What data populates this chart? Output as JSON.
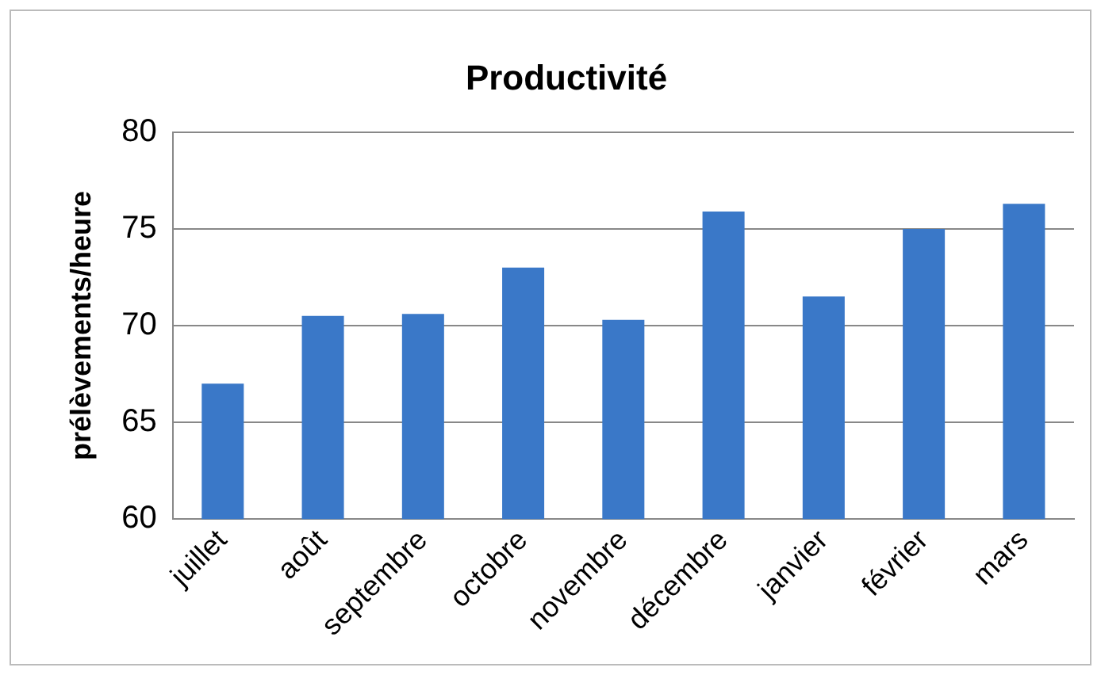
{
  "chart_data": {
    "type": "bar",
    "title": "Productivité",
    "ylabel": "prélèvements/heure",
    "categories": [
      "juillet",
      "août",
      "septembre",
      "octobre",
      "novembre",
      "décembre",
      "janvier",
      "février",
      "mars"
    ],
    "values": [
      67.0,
      70.5,
      70.6,
      73.0,
      70.3,
      75.9,
      71.5,
      75.0,
      76.3
    ],
    "color": "#3a78c8",
    "ylim": [
      60,
      80
    ],
    "yticks": [
      60,
      65,
      70,
      75,
      80
    ],
    "grid": "y",
    "legend": false
  }
}
